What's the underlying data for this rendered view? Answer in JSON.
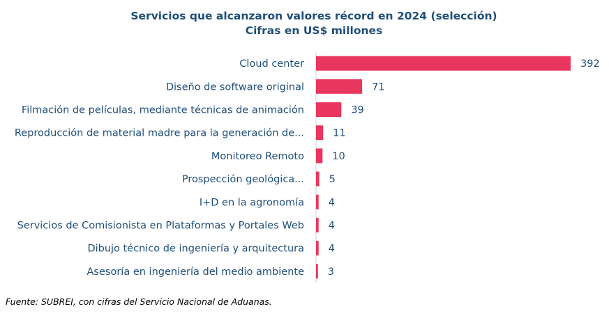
{
  "colors": {
    "bar": "#e8365e",
    "text": "#1f4e79",
    "axis": "#d0d0d0"
  },
  "chart_data": {
    "type": "bar",
    "orientation": "horizontal",
    "title": "Servicios que alcanzaron valores récord en 2024 (selección)",
    "subtitle": "Cifras en US$ millones",
    "categories": [
      "Cloud center",
      "Diseño de software original",
      "Filmación de películas, mediante técnicas de animación",
      "Reproducción de material madre para la generación de...",
      "Monitoreo Remoto",
      "Prospección geológica...",
      "I+D en la agronomía",
      "Servicios de Comisionista en Plataformas y Portales Web",
      "Dibujo técnico de ingeniería y arquitectura",
      "Asesoría en ingeniería del medio ambiente"
    ],
    "values": [
      392,
      71,
      39,
      11,
      10,
      5,
      4,
      4,
      4,
      3
    ],
    "value_labels": [
      "392",
      "71",
      "39",
      "11",
      "10",
      "5",
      "4",
      "4",
      "4",
      "3"
    ],
    "xlim": [
      0,
      392
    ],
    "grid": false,
    "legend": "none"
  },
  "footer": {
    "source": "Fuente: SUBREI, con cifras del Servicio Nacional de Aduanas."
  }
}
